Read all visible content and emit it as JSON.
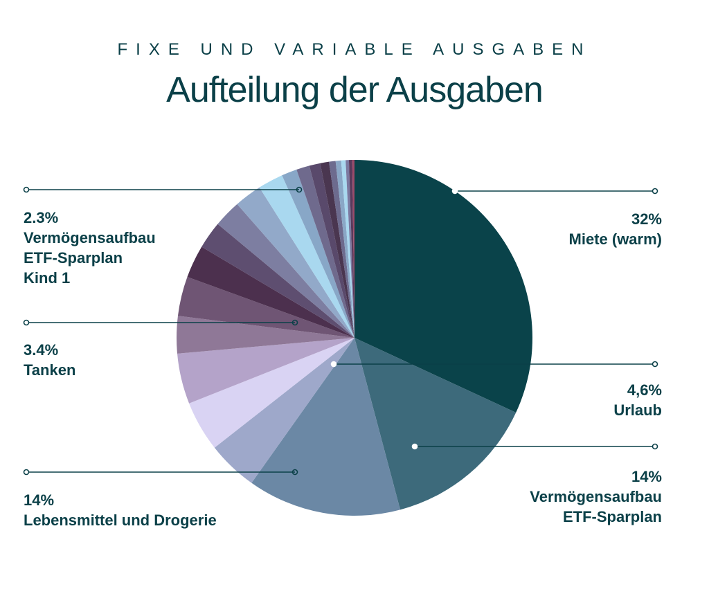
{
  "header": {
    "kicker": "FIXE UND VARIABLE AUSGABEN",
    "title": "Aufteilung der Ausgaben"
  },
  "colors": {
    "text": "#0b4048",
    "leader": "#0b4048"
  },
  "chart_data": {
    "type": "pie",
    "title": "Aufteilung der Ausgaben",
    "subtitle": "FIXE UND VARIABLE AUSGABEN",
    "slices": [
      {
        "value": 32.0,
        "color": "#0a434a"
      },
      {
        "value": 14.0,
        "color": "#3d6a7b"
      },
      {
        "value": 14.0,
        "color": "#6b88a5"
      },
      {
        "value": 4.6,
        "color": "#9ea8ca"
      },
      {
        "value": 4.6,
        "color": "#d9d3f3"
      },
      {
        "value": 4.6,
        "color": "#b4a3c9"
      },
      {
        "value": 3.4,
        "color": "#8f7897"
      },
      {
        "value": 3.6,
        "color": "#6f5574"
      },
      {
        "value": 3.0,
        "color": "#4c304e"
      },
      {
        "value": 2.5,
        "color": "#5e4e70"
      },
      {
        "value": 2.5,
        "color": "#7d7ea1"
      },
      {
        "value": 2.5,
        "color": "#92a9c9"
      },
      {
        "value": 2.3,
        "color": "#a9d8ef"
      },
      {
        "value": 1.4,
        "color": "#88a7c7"
      },
      {
        "value": 1.2,
        "color": "#6f6a8d"
      },
      {
        "value": 1.0,
        "color": "#59496b"
      },
      {
        "value": 0.8,
        "color": "#4a3650"
      },
      {
        "value": 0.6,
        "color": "#6d6b8e"
      },
      {
        "value": 0.5,
        "color": "#8aa7c6"
      },
      {
        "value": 0.4,
        "color": "#a9d8ef"
      },
      {
        "value": 0.3,
        "color": "#7c79a0"
      },
      {
        "value": 0.3,
        "color": "#5a3a5c"
      },
      {
        "value": 0.2,
        "color": "#9b4a6a"
      }
    ],
    "annotations": [
      {
        "lines": [
          "32%",
          "Miete (warm)"
        ],
        "slice": 0,
        "side": "right"
      },
      {
        "lines": [
          "4,6%",
          "Urlaub"
        ],
        "slice": 3,
        "side": "right"
      },
      {
        "lines": [
          "14%",
          "Vermögensaufbau",
          "ETF-Sparplan"
        ],
        "slice": 1,
        "side": "right"
      },
      {
        "lines": [
          "2.3%",
          "Vermögensaufbau",
          "ETF-Sparplan",
          "Kind 1"
        ],
        "slice": 12,
        "side": "left"
      },
      {
        "lines": [
          "3.4%",
          "Tanken"
        ],
        "slice": 6,
        "side": "left"
      },
      {
        "lines": [
          "14%",
          "Lebensmittel und Drogerie"
        ],
        "slice": 2,
        "side": "left"
      }
    ]
  }
}
